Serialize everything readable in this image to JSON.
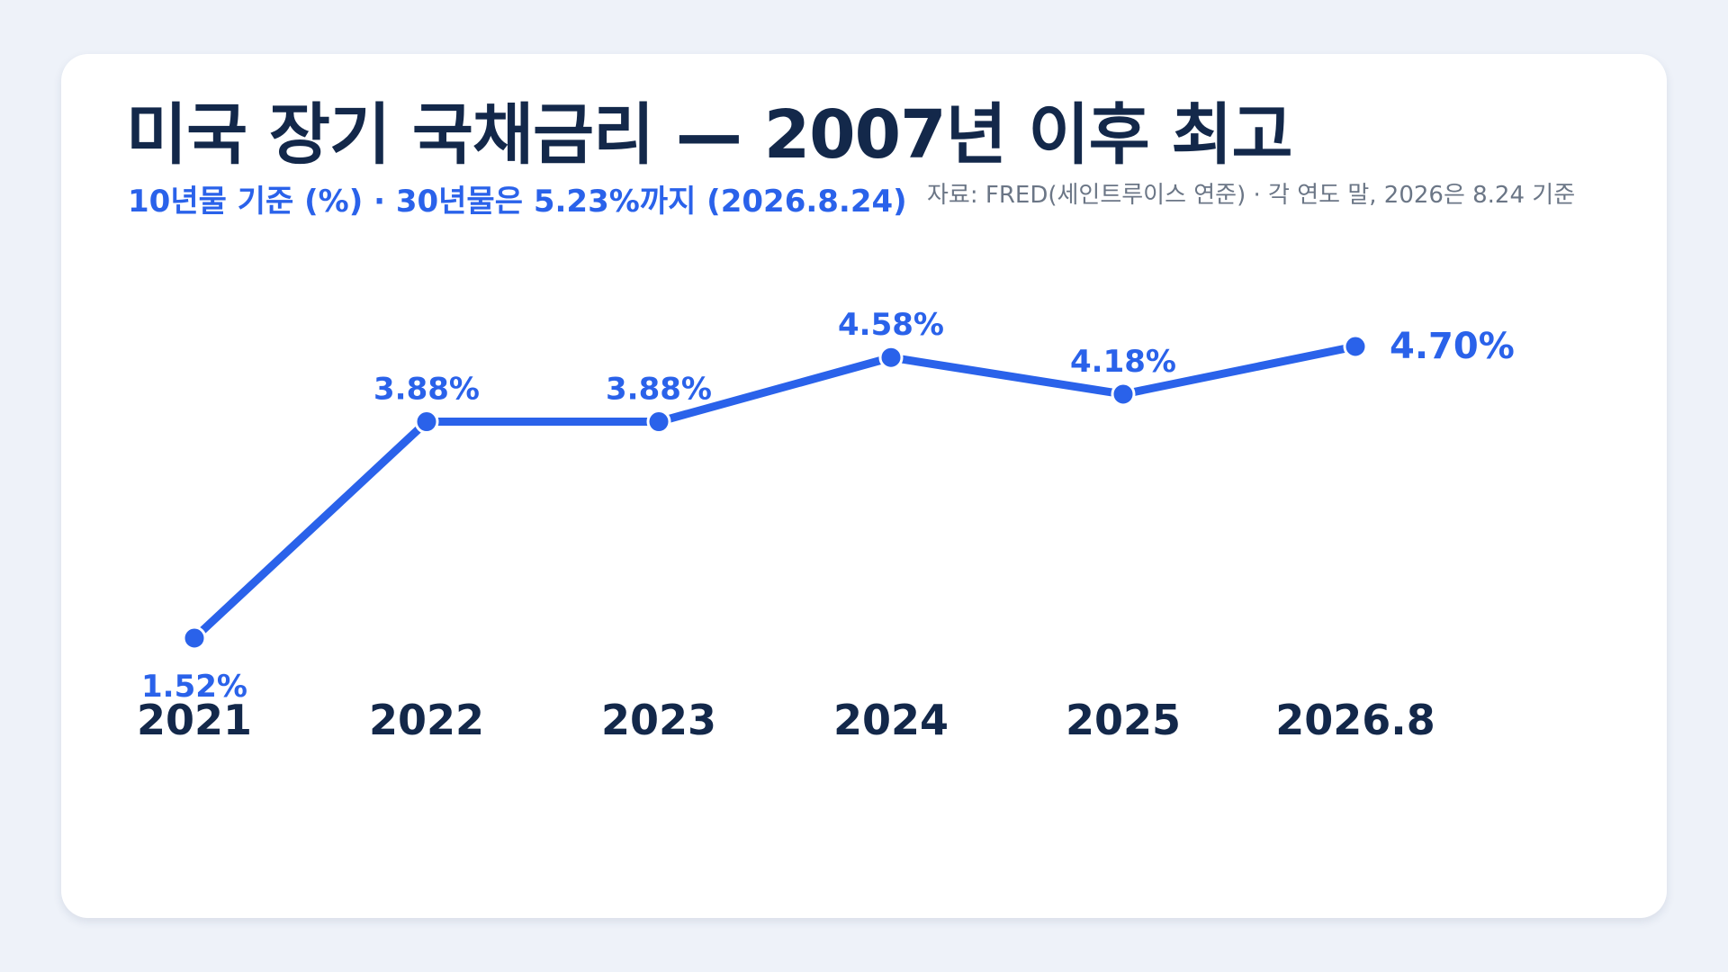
{
  "header": {
    "title": "미국 장기 국채금리 — 2007년 이후 최고",
    "subtitle": "10년물 기준 (%) · 30년물은 5.23%까지 (2026.8.24)",
    "source": "자료: FRED(세인트루이스 연준) · 각 연도 말, 2026은 8.24 기준"
  },
  "colors": {
    "line": "#2a62ea",
    "title": "#13284a",
    "subtitle": "#2a62ea",
    "source": "#6b7686",
    "background": "#eef2f9",
    "card": "#ffffff"
  },
  "chart_data": {
    "type": "line",
    "categories": [
      "2021",
      "2022",
      "2023",
      "2024",
      "2025",
      "2026.8"
    ],
    "series": [
      {
        "values": [
          1.52,
          3.88,
          3.88,
          4.58,
          4.18,
          4.7
        ],
        "labels": [
          "1.52%",
          "3.88%",
          "3.88%",
          "4.58%",
          "4.18%",
          "4.70%"
        ]
      }
    ],
    "ylim": [
      1.52,
      4.7
    ],
    "grid": false,
    "legend": "none",
    "xlabel": "",
    "ylabel": ""
  }
}
